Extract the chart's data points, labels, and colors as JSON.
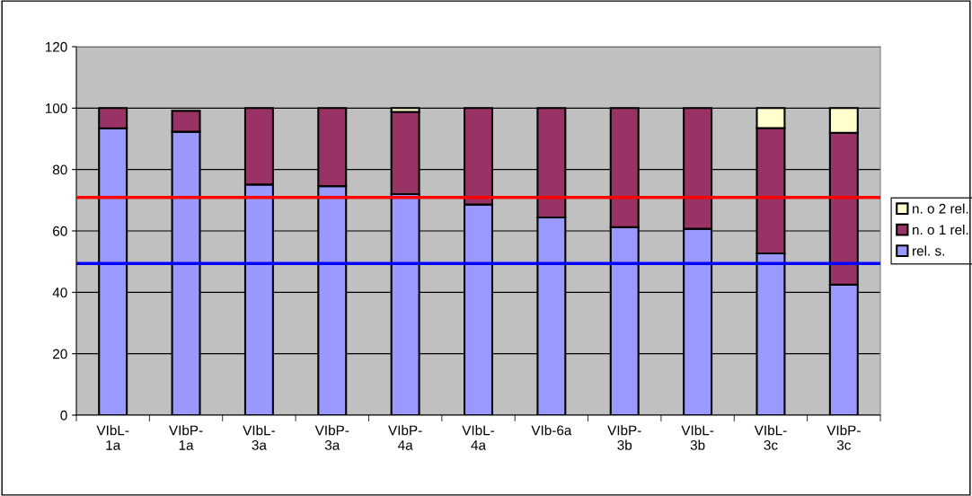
{
  "chart_data": {
    "type": "bar",
    "stacked": true,
    "categories": [
      "VIbL-\n1a",
      "VIbP-\n1a",
      "VIbL-\n3a",
      "VIbP-\n3a",
      "VIbP-\n4a",
      "VIbL-\n4a",
      "VIb-6a",
      "VIbP-\n3b",
      "VIbL-\n3b",
      "VIbL-\n3c",
      "VIbP-\n3c"
    ],
    "series": [
      {
        "name": "rel. s.",
        "color": "#9999ff",
        "values": [
          93.4,
          92.3,
          75.1,
          74.6,
          72.0,
          68.6,
          64.4,
          61.2,
          60.7,
          52.7,
          42.5
        ]
      },
      {
        "name": "n. o 1 rel.",
        "color": "#993366",
        "values": [
          6.6,
          6.8,
          24.9,
          25.4,
          26.8,
          31.4,
          35.6,
          38.8,
          39.3,
          40.8,
          49.5
        ]
      },
      {
        "name": "n. o 2 rel.",
        "color": "#ffffcc",
        "values": [
          null,
          null,
          null,
          null,
          1.2,
          null,
          null,
          null,
          null,
          6.5,
          8.0
        ]
      }
    ],
    "ylim": [
      0,
      120
    ],
    "yticks": [
      0,
      20,
      40,
      60,
      80,
      100,
      120
    ],
    "grid": "y",
    "legend": "right",
    "ref_lines": [
      {
        "axis": "y",
        "value": 70.9,
        "color": "#ff0000"
      },
      {
        "axis": "y",
        "value": 49.4,
        "color": "#0000ff"
      }
    ]
  }
}
